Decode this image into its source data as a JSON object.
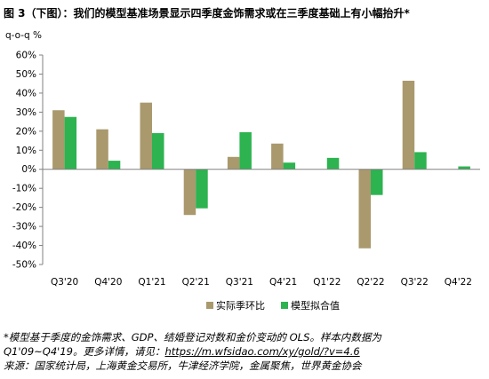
{
  "title": "图 3（下图）：我们的模型基准场景显示四季度金饰需求或在三季度基础上有小幅抬升*",
  "chart_data": {
    "type": "bar",
    "y_unit_label": "q-o-q %",
    "ylim": [
      -50,
      60
    ],
    "yticks": [
      60,
      50,
      40,
      30,
      20,
      10,
      0,
      -10,
      -20,
      -30,
      -40,
      -50
    ],
    "ytick_labels": [
      "60%",
      "50%",
      "40%",
      "30%",
      "20%",
      "10%",
      "0%",
      "-10%",
      "-20%",
      "-30%",
      "-40%",
      "-50%"
    ],
    "categories": [
      "Q3'20",
      "Q4'20",
      "Q1'21",
      "Q2'21",
      "Q3'21",
      "Q4'21",
      "Q1'22",
      "Q2'22",
      "Q3'22",
      "Q4'22"
    ],
    "series": [
      {
        "name": "实际季环比",
        "color": "#A9996D",
        "values": [
          31,
          21,
          35,
          -24,
          6.5,
          13.5,
          null,
          -41.5,
          46.5,
          null
        ]
      },
      {
        "name": "模型拟合值",
        "color": "#2DB350",
        "values": [
          27.5,
          4.5,
          19,
          -20.5,
          19.5,
          3.5,
          6,
          -13.5,
          9,
          1.5
        ]
      }
    ],
    "legend_position": "bottom",
    "grid": false
  },
  "notes": {
    "line1": "*模型基于季度的金饰需求、GDP、结婚登记对数和金价变动的 OLS。样本内数据为",
    "line2_prefix": "Q1'09~Q4'19。更多详情，请见：",
    "line2_url": "https://m.wfsidao.com/xy/gold/?v=4.6",
    "line3": "来源：国家统计局，上海黄金交易所，牛津经济学院，金属聚焦，世界黄金协会"
  }
}
